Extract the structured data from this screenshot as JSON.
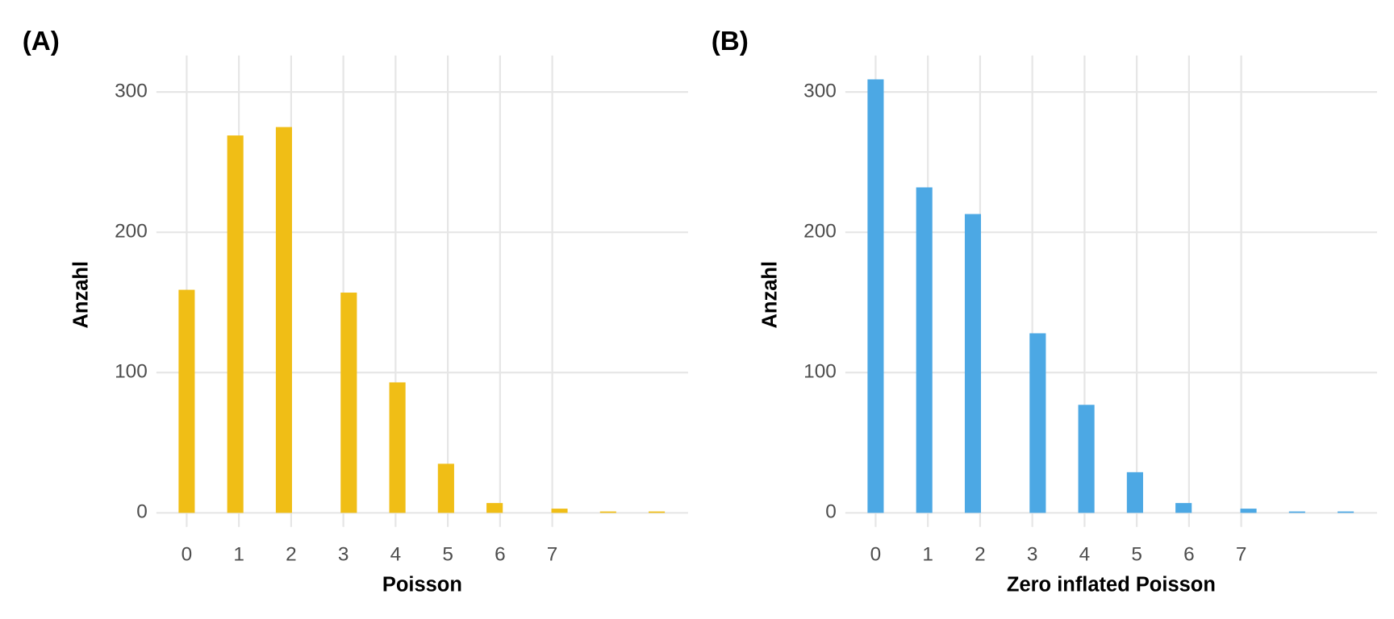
{
  "chart_data": [
    {
      "type": "histogram",
      "tag": "(A)",
      "x_label": "Poisson",
      "y_label": "Anzahl",
      "color": "#F0BE16",
      "grid": true,
      "bins": [
        -0.155,
        0.155,
        0.466,
        0.776,
        1.086,
        1.397,
        1.707,
        2.017,
        2.328,
        2.638,
        2.948,
        3.259,
        3.569,
        3.879,
        4.19,
        4.5,
        4.81,
        5.121,
        5.431,
        5.741,
        6.052,
        6.362,
        6.672,
        6.983,
        7.293,
        7.603,
        7.914,
        8.224,
        8.534,
        8.845,
        9.155
      ],
      "values": [
        159,
        0,
        0,
        269,
        0,
        0,
        275,
        0,
        0,
        0,
        157,
        0,
        0,
        93,
        0,
        0,
        35,
        0,
        0,
        7,
        0,
        0,
        0,
        3,
        0,
        0,
        1,
        0,
        0,
        1
      ],
      "xlim": [
        -0.58,
        9.6
      ],
      "ylim": [
        -10,
        326
      ],
      "xticks": [
        0,
        1,
        2,
        3,
        4,
        5,
        6,
        7
      ],
      "yticks": [
        0,
        100,
        200,
        300
      ]
    },
    {
      "type": "histogram",
      "tag": "(B)",
      "x_label": "Zero inflated Poisson",
      "y_label": "Anzahl",
      "color": "#4CA8E4",
      "grid": true,
      "bins": [
        -0.155,
        0.155,
        0.466,
        0.776,
        1.086,
        1.397,
        1.707,
        2.017,
        2.328,
        2.638,
        2.948,
        3.259,
        3.569,
        3.879,
        4.19,
        4.5,
        4.81,
        5.121,
        5.431,
        5.741,
        6.052,
        6.362,
        6.672,
        6.983,
        7.293,
        7.603,
        7.914,
        8.224,
        8.534,
        8.845,
        9.155
      ],
      "values": [
        309,
        0,
        0,
        232,
        0,
        0,
        213,
        0,
        0,
        0,
        128,
        0,
        0,
        77,
        0,
        0,
        29,
        0,
        0,
        7,
        0,
        0,
        0,
        3,
        0,
        0,
        1,
        0,
        0,
        1
      ],
      "xlim": [
        -0.58,
        9.6
      ],
      "ylim": [
        -10,
        326
      ],
      "xticks": [
        0,
        1,
        2,
        3,
        4,
        5,
        6,
        7
      ],
      "yticks": [
        0,
        100,
        200,
        300
      ]
    }
  ]
}
